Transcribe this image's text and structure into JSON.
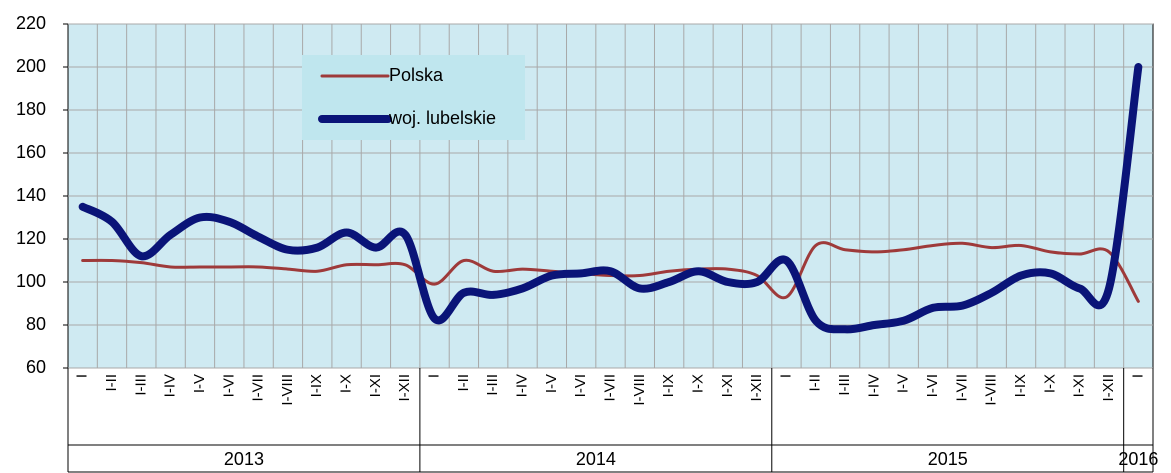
{
  "chart_data": {
    "type": "line",
    "categories": [
      "I",
      "I-II",
      "I-III",
      "I-IV",
      "I-V",
      "I-VI",
      "I-VII",
      "I-VIII",
      "I-IX",
      "I-X",
      "I-XI",
      "I-XII",
      "I",
      "I-II",
      "I-III",
      "I-IV",
      "I-V",
      "I-VI",
      "I-VII",
      "I-VIII",
      "I-IX",
      "I-X",
      "I-XI",
      "I-XII",
      "I",
      "I-II",
      "I-III",
      "I-IV",
      "I-V",
      "I-VI",
      "I-VII",
      "I-VIII",
      "I-IX",
      "I-X",
      "I-XI",
      "I-XII",
      "I"
    ],
    "groups": [
      {
        "label": "2013",
        "span": 12
      },
      {
        "label": "2014",
        "span": 12
      },
      {
        "label": "2015",
        "span": 12
      },
      {
        "label": "2016",
        "span": 1
      }
    ],
    "series": [
      {
        "name": "Polska",
        "color": "#9e3a3a",
        "width": 3,
        "values": [
          110,
          110,
          109,
          107,
          107,
          107,
          107,
          106,
          105,
          108,
          108,
          108,
          99,
          110,
          105,
          106,
          105,
          104,
          103,
          103,
          105,
          106,
          106,
          103,
          93,
          117,
          115,
          114,
          115,
          117,
          118,
          116,
          117,
          114,
          113,
          114,
          91
        ]
      },
      {
        "name": "woj. lubelskie",
        "color": "#0a1478",
        "width": 8,
        "values": [
          135,
          128,
          112,
          122,
          130,
          128,
          121,
          115,
          116,
          123,
          116,
          122,
          83,
          95,
          94,
          97,
          103,
          104,
          105,
          97,
          100,
          105,
          100,
          100,
          110,
          82,
          78,
          80,
          82,
          88,
          89,
          95,
          103,
          104,
          97,
          97,
          200
        ]
      }
    ],
    "ylim": [
      60,
      220
    ],
    "yticks": [
      60,
      80,
      100,
      120,
      140,
      160,
      180,
      200,
      220
    ],
    "grid": true
  }
}
